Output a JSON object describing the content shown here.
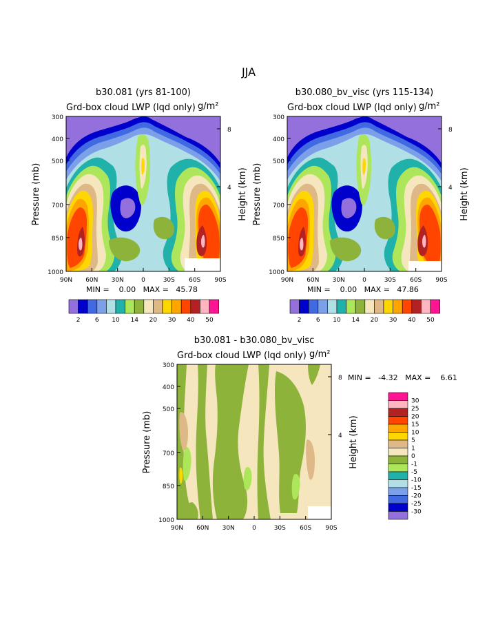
{
  "page_title": "JJA",
  "colors": {
    "palette": [
      "#9370DB",
      "#0000CD",
      "#4169E1",
      "#7B9FE8",
      "#B0E0E6",
      "#20B2AA",
      "#ADE65A",
      "#8DB33A",
      "#F5E6BE",
      "#DEB887",
      "#FFD700",
      "#FFA500",
      "#FF4500",
      "#B22222",
      "#FFB6C1",
      "#FF1493"
    ]
  },
  "chart_data": [
    {
      "type": "heatmap",
      "id": "panel1",
      "title": "b30.081 (yrs 81-100)",
      "field_label": "Grd-box cloud LWP (lqd only)",
      "units": "g/m²",
      "ylabel": "Pressure (mb)",
      "y2label": "Height (km)",
      "yticks": [
        "300",
        "400",
        "500",
        "700",
        "850",
        "1000"
      ],
      "y2ticks": [
        "8",
        "4"
      ],
      "xticks": [
        "90N",
        "60N",
        "30N",
        "0",
        "30S",
        "60S",
        "90S"
      ],
      "min_text": "MIN =    0.00   MAX =   45.78",
      "min": 0.0,
      "max": 45.78,
      "colorbar_labels": [
        "2",
        "6",
        "10",
        "14",
        "20",
        "30",
        "40",
        "50"
      ]
    },
    {
      "type": "heatmap",
      "id": "panel2",
      "title": "b30.080_bv_visc (yrs 115-134)",
      "field_label": "Grd-box cloud LWP (lqd only)",
      "units": "g/m²",
      "ylabel": "Pressure (mb)",
      "y2label": "Height (km)",
      "yticks": [
        "300",
        "400",
        "500",
        "700",
        "850",
        "1000"
      ],
      "y2ticks": [
        "8",
        "4"
      ],
      "xticks": [
        "90N",
        "60N",
        "30N",
        "0",
        "30S",
        "60S",
        "90S"
      ],
      "min_text": "MIN =    0.00   MAX =   47.86",
      "min": 0.0,
      "max": 47.86,
      "colorbar_labels": [
        "2",
        "6",
        "10",
        "14",
        "20",
        "30",
        "40",
        "50"
      ]
    },
    {
      "type": "heatmap",
      "id": "panel3",
      "title": "b30.081 - b30.080_bv_visc",
      "field_label": "Grd-box cloud LWP (lqd only)",
      "units": "g/m²",
      "ylabel": "Pressure (mb)",
      "y2label": "Height (km)",
      "yticks": [
        "300",
        "400",
        "500",
        "700",
        "850",
        "1000"
      ],
      "y2ticks": [
        "8",
        "4"
      ],
      "xticks": [
        "90N",
        "60N",
        "30N",
        "0",
        "30S",
        "60S",
        "90S"
      ],
      "min_text": "MIN =   -4.32   MAX =    6.61",
      "min": -4.32,
      "max": 6.61,
      "colorbar_labels": [
        "30",
        "25",
        "20",
        "15",
        "10",
        "5",
        "1",
        "0",
        "-1",
        "-5",
        "-10",
        "-15",
        "-20",
        "-25",
        "-30"
      ]
    }
  ]
}
